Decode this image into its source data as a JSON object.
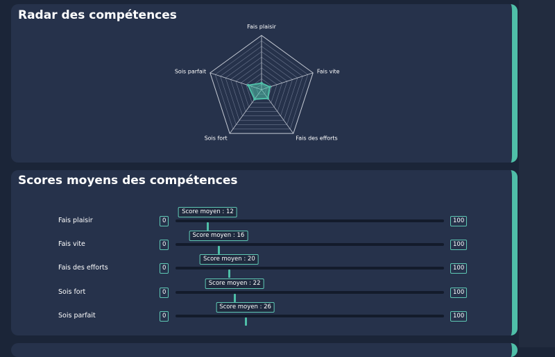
{
  "radar": {
    "title": "Radar des compétences",
    "chart_data": {
      "type": "radar",
      "axes": [
        "Fais plaisir",
        "Fais vite",
        "Fais des efforts",
        "Sois fort",
        "Sois parfait"
      ],
      "values": [
        12,
        16,
        20,
        22,
        26
      ],
      "range": [
        0,
        100
      ],
      "grid": true,
      "color": "#4fbfa8"
    }
  },
  "scores": {
    "title": "Scores moyens des compétences",
    "tooltip_prefix": "Score moyen : ",
    "items": [
      {
        "label": "Fais plaisir",
        "min": "0",
        "max": "100",
        "value": 12,
        "tooltip": "Score moyen : 12"
      },
      {
        "label": "Fais vite",
        "min": "0",
        "max": "100",
        "value": 16,
        "tooltip": "Score moyen : 16"
      },
      {
        "label": "Fais des efforts",
        "min": "0",
        "max": "100",
        "value": 20,
        "tooltip": "Score moyen : 20"
      },
      {
        "label": "Sois fort",
        "min": "0",
        "max": "100",
        "value": 22,
        "tooltip": "Score moyen : 22"
      },
      {
        "label": "Sois parfait",
        "min": "0",
        "max": "100",
        "value": 26,
        "tooltip": "Score moyen : 26"
      }
    ]
  },
  "colors": {
    "accent": "#4fbfa8",
    "card": "#26324b",
    "background": "#1b2538"
  }
}
